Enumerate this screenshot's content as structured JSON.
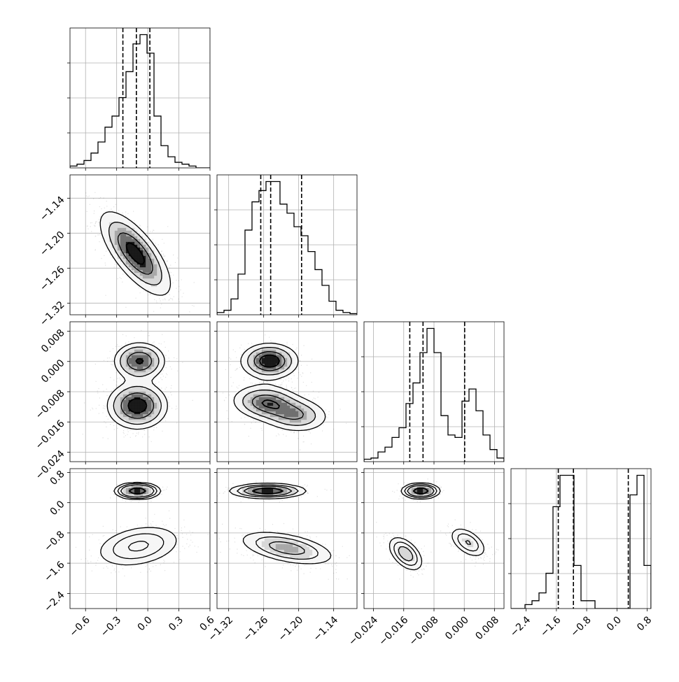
{
  "chart_data": {
    "type": "corner",
    "title": "",
    "parameters": [
      "",
      "",
      "",
      ""
    ],
    "axes": [
      {
        "range": [
          -0.75,
          0.6
        ],
        "ticks": [
          -0.6,
          -0.3,
          0.0,
          0.3,
          0.6
        ],
        "tick_labels": [
          "−0.6",
          "−0.3",
          "0.0",
          "0.3",
          "0.6"
        ]
      },
      {
        "range": [
          -1.34,
          -1.1
        ],
        "ticks": [
          -1.32,
          -1.26,
          -1.2,
          -1.14
        ],
        "tick_labels": [
          "−1.32",
          "−1.26",
          "−1.20",
          "−1.14"
        ]
      },
      {
        "range": [
          -0.0265,
          0.0105
        ],
        "ticks": [
          -0.024,
          -0.016,
          -0.008,
          0.0,
          0.008
        ],
        "tick_labels": [
          "−0.024",
          "−0.016",
          "−0.008",
          "0.000",
          "0.008"
        ]
      },
      {
        "range": [
          -2.8,
          0.9
        ],
        "ticks": [
          -2.4,
          -1.6,
          -0.8,
          0.0,
          0.8
        ],
        "tick_labels": [
          "−2.4",
          "−1.6",
          "−0.8",
          "0.0",
          "0.8"
        ]
      }
    ],
    "quantiles": [
      [
        -0.24,
        -0.11,
        0.02
      ],
      [
        -1.265,
        -1.248,
        -1.195
      ],
      [
        -0.0144,
        -0.0109,
        0.0001
      ],
      [
        -1.55,
        -1.15,
        0.3
      ]
    ],
    "histograms": [
      {
        "edges_start": -0.75,
        "bin_width": 0.0675,
        "counts": [
          1,
          2,
          4,
          8,
          14,
          22,
          28,
          38,
          52,
          67,
          72,
          62,
          28,
          12,
          6,
          3,
          2,
          1,
          0,
          0
        ]
      },
      {
        "edges_start": -1.34,
        "bin_width": 0.012,
        "counts": [
          2,
          4,
          14,
          36,
          75,
          100,
          110,
          118,
          118,
          98,
          90,
          78,
          70,
          56,
          40,
          26,
          12,
          4,
          2,
          1
        ]
      },
      {
        "edges_start": -0.0265,
        "bin_width": 0.00185,
        "counts": [
          2,
          3,
          8,
          12,
          20,
          28,
          48,
          65,
          90,
          110,
          90,
          38,
          22,
          20,
          50,
          60,
          42,
          22,
          10,
          3
        ]
      },
      {
        "edges_start": -2.8,
        "bin_width": 0.185,
        "counts": [
          0,
          0,
          2,
          4,
          8,
          18,
          52,
          68,
          68,
          22,
          4,
          4,
          0,
          0,
          0,
          0,
          0,
          58,
          68,
          22
        ]
      }
    ],
    "joint": [
      {
        "x": 0,
        "y": 1,
        "blobs": [
          {
            "cx": -0.12,
            "cy": -1.235,
            "sx": 0.17,
            "sy": 0.036,
            "rho": -0.72,
            "w": 1.0
          }
        ]
      },
      {
        "x": 0,
        "y": 2,
        "blobs": [
          {
            "cx": -0.1,
            "cy": -0.0117,
            "sx": 0.15,
            "sy": 0.0032,
            "rho": 0.0,
            "w": 0.62
          },
          {
            "cx": -0.08,
            "cy": 0.0001,
            "sx": 0.13,
            "sy": 0.0026,
            "rho": 0.0,
            "w": 0.38
          }
        ]
      },
      {
        "x": 0,
        "y": 3,
        "blobs": [
          {
            "cx": -0.1,
            "cy": 0.31,
            "sx": 0.09,
            "sy": 0.09,
            "rho": 0.0,
            "w": 0.4
          },
          {
            "cx": -0.09,
            "cy": -1.15,
            "sx": 0.2,
            "sy": 0.27,
            "rho": 0.3,
            "w": 0.6
          }
        ]
      },
      {
        "x": 1,
        "y": 2,
        "blobs": [
          {
            "cx": -1.256,
            "cy": -0.0108,
            "sx": 0.03,
            "sy": 0.0024,
            "rho": -0.1,
            "w": 0.35
          },
          {
            "cx": -1.205,
            "cy": -0.0142,
            "sx": 0.03,
            "sy": 0.0024,
            "rho": -0.1,
            "w": 0.27
          },
          {
            "cx": -1.25,
            "cy": 0.0001,
            "sx": 0.025,
            "sy": 0.0024,
            "rho": 0.0,
            "w": 0.38
          }
        ]
      },
      {
        "x": 1,
        "y": 3,
        "blobs": [
          {
            "cx": -1.253,
            "cy": 0.31,
            "sx": 0.03,
            "sy": 0.09,
            "rho": 0.0,
            "w": 0.4
          },
          {
            "cx": -1.22,
            "cy": -1.2,
            "sx": 0.04,
            "sy": 0.22,
            "rho": -0.5,
            "w": 0.6
          }
        ]
      },
      {
        "x": 2,
        "y": 3,
        "blobs": [
          {
            "cx": -0.0115,
            "cy": 0.31,
            "sx": 0.0022,
            "sy": 0.09,
            "rho": 0.0,
            "w": 0.4
          },
          {
            "cx": -0.0155,
            "cy": -1.35,
            "sx": 0.0022,
            "sy": 0.22,
            "rho": -0.5,
            "w": 0.35
          },
          {
            "cx": 0.001,
            "cy": -1.05,
            "sx": 0.0024,
            "sy": 0.2,
            "rho": -0.5,
            "w": 0.25
          }
        ]
      }
    ],
    "contour_levels": [
      0.118,
      0.393,
      0.675,
      0.864
    ],
    "grid": true,
    "legend": "none"
  }
}
